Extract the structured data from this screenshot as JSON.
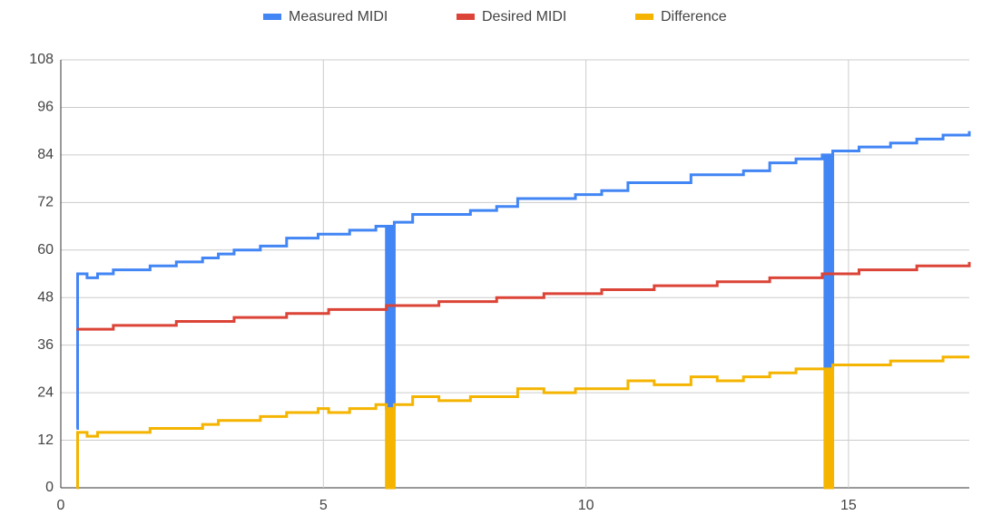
{
  "chart_data": {
    "type": "line",
    "step": true,
    "x": [
      0.3,
      0.32,
      0.5,
      0.7,
      1.0,
      1.3,
      1.7,
      2.2,
      2.7,
      3.0,
      3.3,
      3.8,
      4.3,
      4.9,
      5.1,
      5.5,
      6.0,
      6.2,
      6.25,
      6.3,
      6.35,
      6.7,
      7.2,
      7.8,
      8.3,
      8.7,
      9.2,
      9.8,
      10.3,
      10.8,
      11.3,
      12.0,
      12.5,
      13.0,
      13.5,
      14.0,
      14.5,
      14.55,
      14.6,
      14.65,
      14.7,
      15.2,
      15.8,
      16.3,
      16.8,
      17.3
    ],
    "series": [
      {
        "name": "Measured MIDI",
        "color": "#4285f4",
        "values": [
          15,
          54,
          53,
          54,
          55,
          55,
          56,
          57,
          58,
          59,
          60,
          61,
          63,
          64,
          64,
          65,
          66,
          20,
          66,
          20,
          67,
          69,
          69,
          70,
          71,
          73,
          73,
          74,
          75,
          77,
          77,
          79,
          79,
          80,
          82,
          83,
          84,
          30,
          84,
          30,
          85,
          86,
          87,
          88,
          89,
          90
        ]
      },
      {
        "name": "Desired MIDI",
        "color": "#db4437",
        "values": [
          40,
          40,
          40,
          40,
          41,
          41,
          41,
          42,
          42,
          42,
          43,
          43,
          44,
          44,
          45,
          45,
          45,
          46,
          46,
          46,
          46,
          46,
          47,
          47,
          48,
          48,
          49,
          49,
          50,
          50,
          51,
          51,
          52,
          52,
          53,
          53,
          54,
          54,
          54,
          54,
          54,
          55,
          55,
          56,
          56,
          57
        ]
      },
      {
        "name": "Difference",
        "color": "#f4b400",
        "values": [
          0,
          14,
          13,
          14,
          14,
          14,
          15,
          15,
          16,
          17,
          17,
          18,
          19,
          20,
          19,
          20,
          21,
          0,
          20,
          0,
          21,
          23,
          22,
          23,
          23,
          25,
          24,
          25,
          25,
          27,
          26,
          28,
          27,
          28,
          29,
          30,
          30,
          0,
          30,
          0,
          31,
          31,
          32,
          32,
          33,
          33
        ]
      }
    ],
    "xlim": [
      0,
      17.3
    ],
    "xticks": [
      0,
      5,
      10,
      15
    ],
    "ylim": [
      0,
      108
    ],
    "yticks": [
      0,
      12,
      24,
      36,
      48,
      60,
      72,
      84,
      96,
      108
    ],
    "grid": true,
    "legend": "top"
  }
}
